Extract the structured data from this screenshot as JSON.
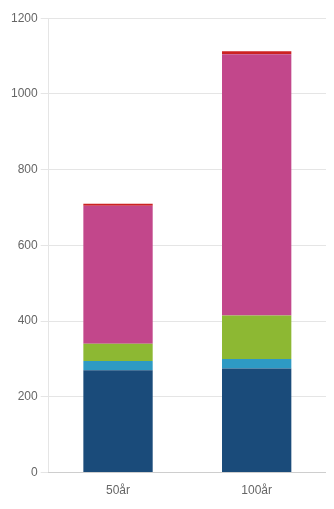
{
  "chart_data": {
    "type": "bar",
    "stacked": true,
    "categories": [
      "50år",
      "100år"
    ],
    "series": [
      {
        "color": "#1A4B7A",
        "values": [
          270,
          275
        ]
      },
      {
        "color": "#2E9AC4",
        "values": [
          25,
          25
        ]
      },
      {
        "color": "#8DB833",
        "values": [
          45,
          115
        ]
      },
      {
        "color": "#C2478B",
        "values": [
          365,
          690
        ]
      },
      {
        "color": "#CC2222",
        "values": [
          5,
          8
        ]
      }
    ],
    "ylim": [
      0,
      1200
    ],
    "yticks": [
      0,
      200,
      400,
      600,
      800,
      1000,
      1200
    ],
    "grid": true
  }
}
